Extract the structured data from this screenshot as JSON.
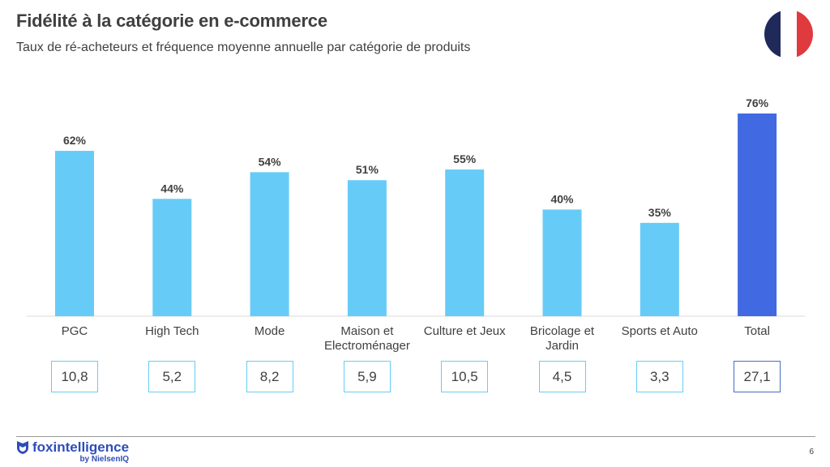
{
  "header": {
    "title": "Fidélité à la catégorie en e-commerce",
    "subtitle": "Taux de ré-acheteurs et fréquence moyenne annuelle par catégorie de produits"
  },
  "flag": {
    "colors": [
      "#1f2a5a",
      "#ffffff",
      "#e03a3e"
    ]
  },
  "chart_data": {
    "type": "bar",
    "categories": [
      "PGC",
      "High Tech",
      "Mode",
      "Maison et Electroménager",
      "Culture et Jeux",
      "Bricolage et Jardin",
      "Sports et Auto",
      "Total"
    ],
    "category_lines": [
      [
        "PGC"
      ],
      [
        "High Tech"
      ],
      [
        "Mode"
      ],
      [
        "Maison et",
        "Electroménager"
      ],
      [
        "Culture et Jeux"
      ],
      [
        "Bricolage et",
        "Jardin"
      ],
      [
        "Sports et Auto"
      ],
      [
        "Total"
      ]
    ],
    "values": [
      62,
      44,
      54,
      51,
      55,
      40,
      35,
      76
    ],
    "value_labels": [
      "62%",
      "44%",
      "54%",
      "51%",
      "55%",
      "40%",
      "35%",
      "76%"
    ],
    "frequency": [
      "10,8",
      "5,2",
      "8,2",
      "5,9",
      "10,5",
      "4,5",
      "3,3",
      "27,1"
    ],
    "ylim": [
      0,
      76
    ],
    "grid": false,
    "colors": {
      "bar": "#66ccf7",
      "total_bar": "#4169e1"
    }
  },
  "footer": {
    "brand": "foxintelligence",
    "brand_sub": "by NielsenIQ",
    "page_number": "6",
    "brand_color": "#2e4db8"
  }
}
